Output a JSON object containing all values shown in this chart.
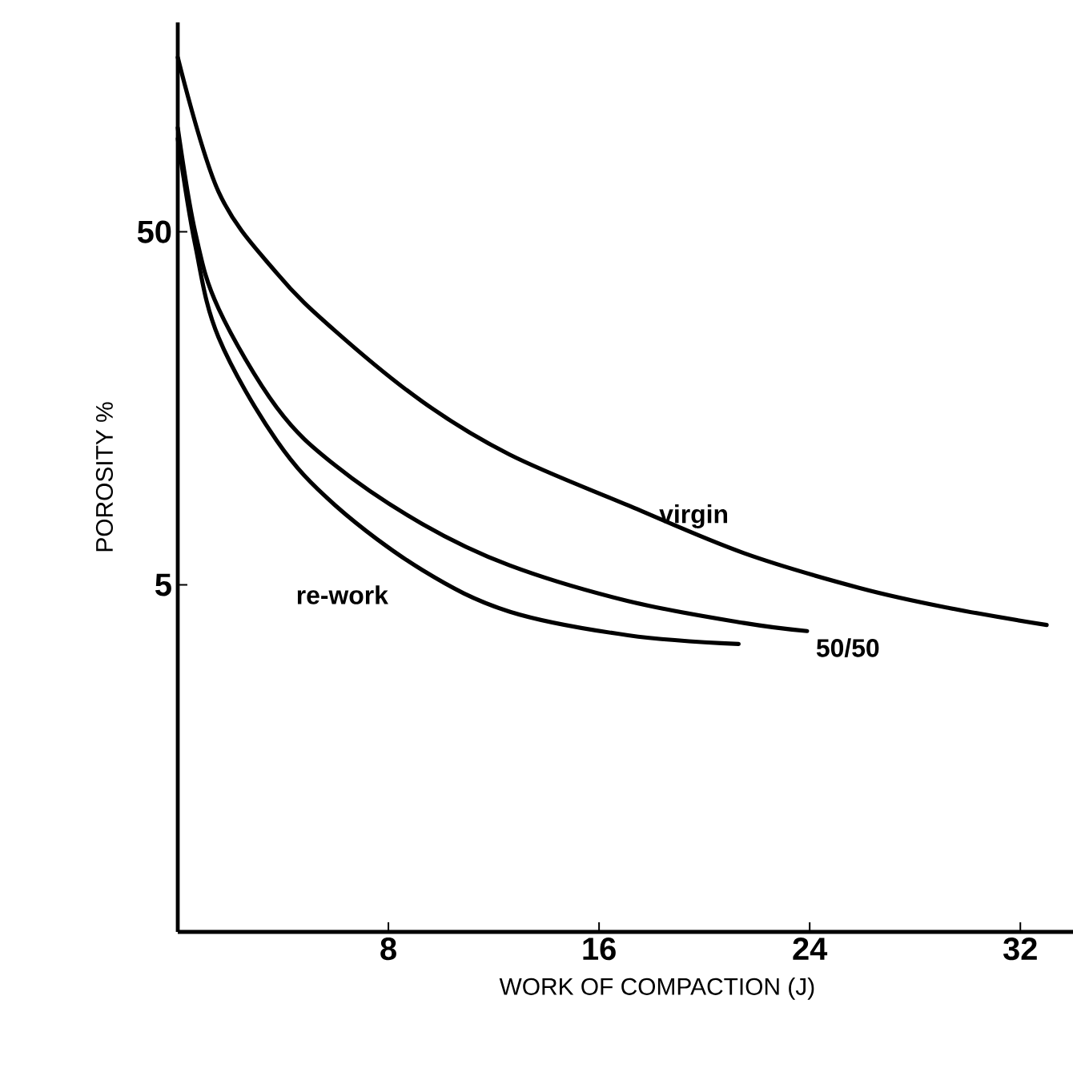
{
  "chart_data": {
    "type": "line",
    "xlabel": "WORK OF COMPACTION    (J)",
    "ylabel": "POROSITY  %",
    "log": "y",
    "xlim": [
      0,
      34
    ],
    "ylim": [
      0.52,
      196
    ],
    "xticks": [
      8,
      16,
      24,
      32
    ],
    "yticks": [
      5,
      50
    ],
    "series": [
      {
        "name": "virgin",
        "color": "#000000",
        "x": [
          0,
          1.55,
          3.76,
          5.98,
          9.3,
          12.6,
          17.1,
          21.5,
          25.9,
          29.3,
          33.0
        ],
        "values": [
          156,
          64.9,
          38.2,
          26.2,
          16.5,
          11.7,
          8.4,
          6.15,
          4.9,
          4.3,
          3.85
        ]
      },
      {
        "name": "50/50",
        "color": "#000000",
        "x": [
          0,
          0.66,
          1.55,
          3.76,
          5.98,
          9.3,
          12.6,
          17.1,
          21.5,
          23.9
        ],
        "values": [
          98.6,
          50,
          30.3,
          15.9,
          10.9,
          7.43,
          5.68,
          4.5,
          3.9,
          3.7
        ]
      },
      {
        "name": "re-work",
        "color": "#000000",
        "x": [
          0,
          0.66,
          1.55,
          3.76,
          5.98,
          9.3,
          12.6,
          17.1,
          21.3
        ],
        "values": [
          91.8,
          46,
          25.1,
          12.8,
          8.4,
          5.5,
          4.2,
          3.6,
          3.4
        ]
      }
    ]
  }
}
